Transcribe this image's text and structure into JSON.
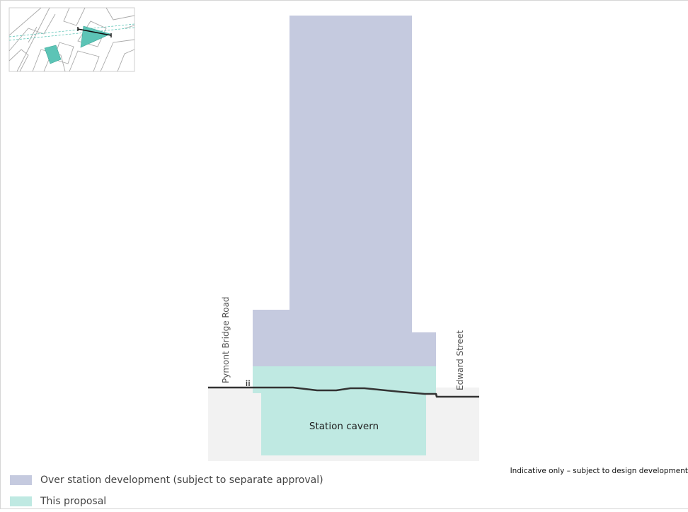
{
  "streets": {
    "left": "Pymont Bridge Road",
    "right": "Edward Street"
  },
  "cavern_label": "Station cavern",
  "legend": [
    {
      "label": "Over station development (subject to separate approval)",
      "color": "#c5cadf"
    },
    {
      "label": "This proposal",
      "color": "#bfe9e2"
    }
  ],
  "note": "Indicative only – subject to design development",
  "colors": {
    "over_station": "#c5cadf",
    "proposal": "#bfe9e2",
    "ground": "#f2f2f2",
    "ground_line": "#333333",
    "keymap_highlight": "#5cc4b6"
  },
  "keymap_icon": "site-location-keymap"
}
